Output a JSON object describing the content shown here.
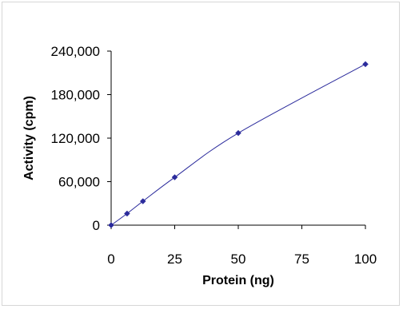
{
  "chart_data": {
    "type": "line",
    "title": "",
    "xlabel": "Protein (ng)",
    "ylabel": "Activity (cpm)",
    "xlim": [
      0,
      100
    ],
    "ylim": [
      0,
      240000
    ],
    "x_ticks": [
      0,
      25,
      50,
      75,
      100
    ],
    "x_tick_labels": [
      "0",
      "25",
      "50",
      "75",
      "100"
    ],
    "y_ticks": [
      0,
      60000,
      120000,
      180000,
      240000
    ],
    "y_tick_labels": [
      "0",
      "60,000",
      "120,000",
      "180,000",
      "240,000"
    ],
    "grid": false,
    "legend": "none",
    "series": [
      {
        "x": [
          0,
          6.25,
          12.5,
          25,
          50,
          100
        ],
        "y": [
          0,
          16000,
          33000,
          66000,
          127000,
          222000
        ],
        "color": "#2b2b9c",
        "marker": "diamond"
      }
    ]
  }
}
